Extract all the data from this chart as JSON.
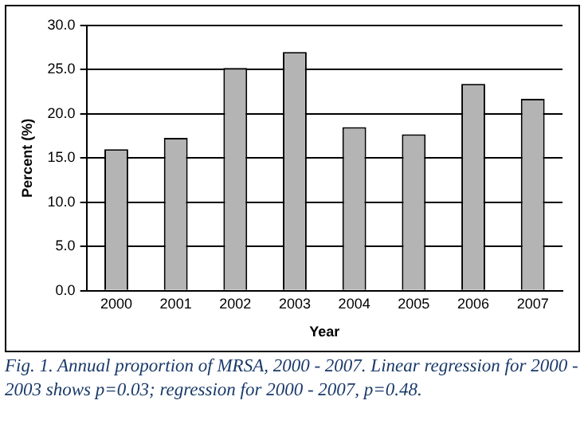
{
  "chart_data": {
    "type": "bar",
    "xlabel": "Year",
    "ylabel": "Percent (%)",
    "categories": [
      "2000",
      "2001",
      "2002",
      "2003",
      "2004",
      "2005",
      "2006",
      "2007"
    ],
    "values": [
      16.0,
      17.3,
      25.2,
      27.0,
      18.5,
      17.7,
      23.4,
      21.7
    ],
    "color": "#b4b4b4",
    "ylim": [
      0,
      30
    ],
    "yticks": [
      {
        "value": 0,
        "label": "0.0"
      },
      {
        "value": 5,
        "label": "5.0"
      },
      {
        "value": 10,
        "label": "10.0"
      },
      {
        "value": 15,
        "label": "15.0"
      },
      {
        "value": 20,
        "label": "20.0"
      },
      {
        "value": 25,
        "label": "25.0"
      },
      {
        "value": 30,
        "label": "30.0"
      }
    ],
    "grid": "y",
    "annotations": [
      "Fig. 1. Annual proportion of MRSA, 2000 - 2007. Linear regression for 2000 - 2003 shows p=0.03; regression for 2000 - 2007, p=0.48."
    ]
  }
}
